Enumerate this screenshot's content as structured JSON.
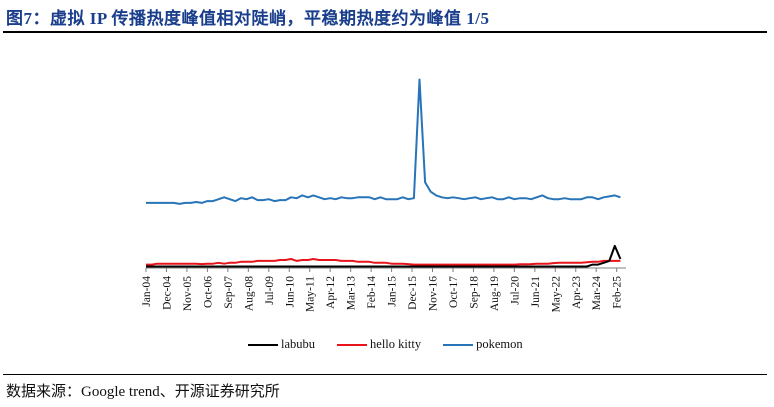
{
  "title": "图7：虚拟 IP 传播热度峰值相对陡峭，平稳期热度约为峰值 1/5",
  "source": "数据来源：Google trend、开源证券研究所",
  "chart_data": {
    "type": "line",
    "title": "图7：虚拟 IP 传播热度峰值相对陡峭，平稳期热度约为峰值 1/5",
    "xlabel": "",
    "ylabel": "",
    "ylim": [
      0,
      100
    ],
    "grid": false,
    "legend_position": "bottom",
    "x_start": "Jan-04",
    "x_end": "Jun-25",
    "tick_labels": [
      "Jan-04",
      "Dec-04",
      "Nov-05",
      "Oct-06",
      "Sep-07",
      "Aug-08",
      "Jul-09",
      "Jun-10",
      "May-11",
      "Apr-12",
      "Mar-13",
      "Feb-14",
      "Jan-15",
      "Dec-15",
      "Nov-16",
      "Oct-17",
      "Sep-18",
      "Aug-19",
      "Jul-20",
      "Jun-21",
      "May-22",
      "Apr-23",
      "Mar-24",
      "Feb-25"
    ],
    "tick_step_months": 11,
    "sample_step_months": 3,
    "series": [
      {
        "name": "labubu",
        "color": "#000000",
        "values": [
          0,
          0,
          0,
          0,
          0,
          0,
          0,
          0,
          0,
          0,
          0,
          0,
          0,
          0,
          0,
          0,
          0,
          0,
          0,
          0,
          0,
          0,
          0,
          0,
          0,
          0,
          0,
          0,
          0,
          0,
          0,
          0,
          0,
          0,
          0,
          0,
          0,
          0,
          0,
          0,
          0,
          0,
          0,
          0,
          0,
          0,
          0,
          0,
          0,
          0,
          0,
          0,
          0,
          0,
          0,
          0,
          0,
          0,
          0,
          0,
          0,
          0,
          0,
          0,
          0,
          0,
          0,
          0,
          0,
          0,
          0,
          0,
          0,
          0,
          0,
          0,
          0,
          0,
          0,
          0,
          1,
          1,
          2,
          3,
          11,
          4
        ]
      },
      {
        "name": "hello kitty",
        "color": "#e8141c",
        "values": [
          1,
          1,
          1.5,
          1.5,
          1.5,
          1.5,
          1.5,
          1.5,
          1.5,
          1.5,
          1.3,
          1.5,
          1.5,
          2,
          1.5,
          2,
          2,
          2.5,
          2.5,
          2.5,
          3,
          3,
          3,
          3,
          3.5,
          3.5,
          4,
          3,
          3.5,
          3.5,
          4,
          3.5,
          3.5,
          3.5,
          3.5,
          3,
          3,
          3,
          2.5,
          2.5,
          2.5,
          2,
          2,
          2,
          1.5,
          1.5,
          1.5,
          1.3,
          1,
          1,
          1,
          1,
          1,
          1,
          1,
          1,
          1,
          1,
          1,
          1,
          1,
          1,
          1,
          1,
          1,
          1,
          1,
          1.2,
          1.2,
          1.3,
          1.5,
          1.5,
          1.5,
          1.8,
          2,
          2,
          2,
          2,
          2,
          2.3,
          2.5,
          2.5,
          3,
          3,
          3,
          3
        ]
      },
      {
        "name": "pokemon",
        "color": "#2774b8",
        "values": [
          34,
          34,
          34,
          34,
          34,
          34,
          33.5,
          34,
          34,
          34.5,
          34,
          35,
          35,
          36,
          37,
          36,
          35,
          36.5,
          36,
          37,
          35.5,
          35.5,
          36,
          35,
          35.5,
          35.5,
          37,
          36.5,
          38,
          37,
          38,
          37,
          36,
          36.5,
          36,
          37,
          36.5,
          36.5,
          37,
          37,
          37,
          36,
          37,
          36,
          36,
          36,
          37,
          36,
          36.5,
          100,
          45,
          40,
          38,
          37,
          36.5,
          37,
          36.5,
          36,
          36.5,
          37,
          36,
          36.5,
          37,
          36,
          36,
          37,
          36,
          36.5,
          36.5,
          36,
          37,
          38,
          36.5,
          36,
          36,
          36.5,
          36,
          36,
          36,
          37,
          37,
          36,
          37,
          37.5,
          38,
          37
        ]
      }
    ]
  },
  "legend": {
    "items": [
      {
        "label": "labubu",
        "color": "#000000"
      },
      {
        "label": "hello kitty",
        "color": "#e8141c"
      },
      {
        "label": "pokemon",
        "color": "#2774b8"
      }
    ]
  }
}
